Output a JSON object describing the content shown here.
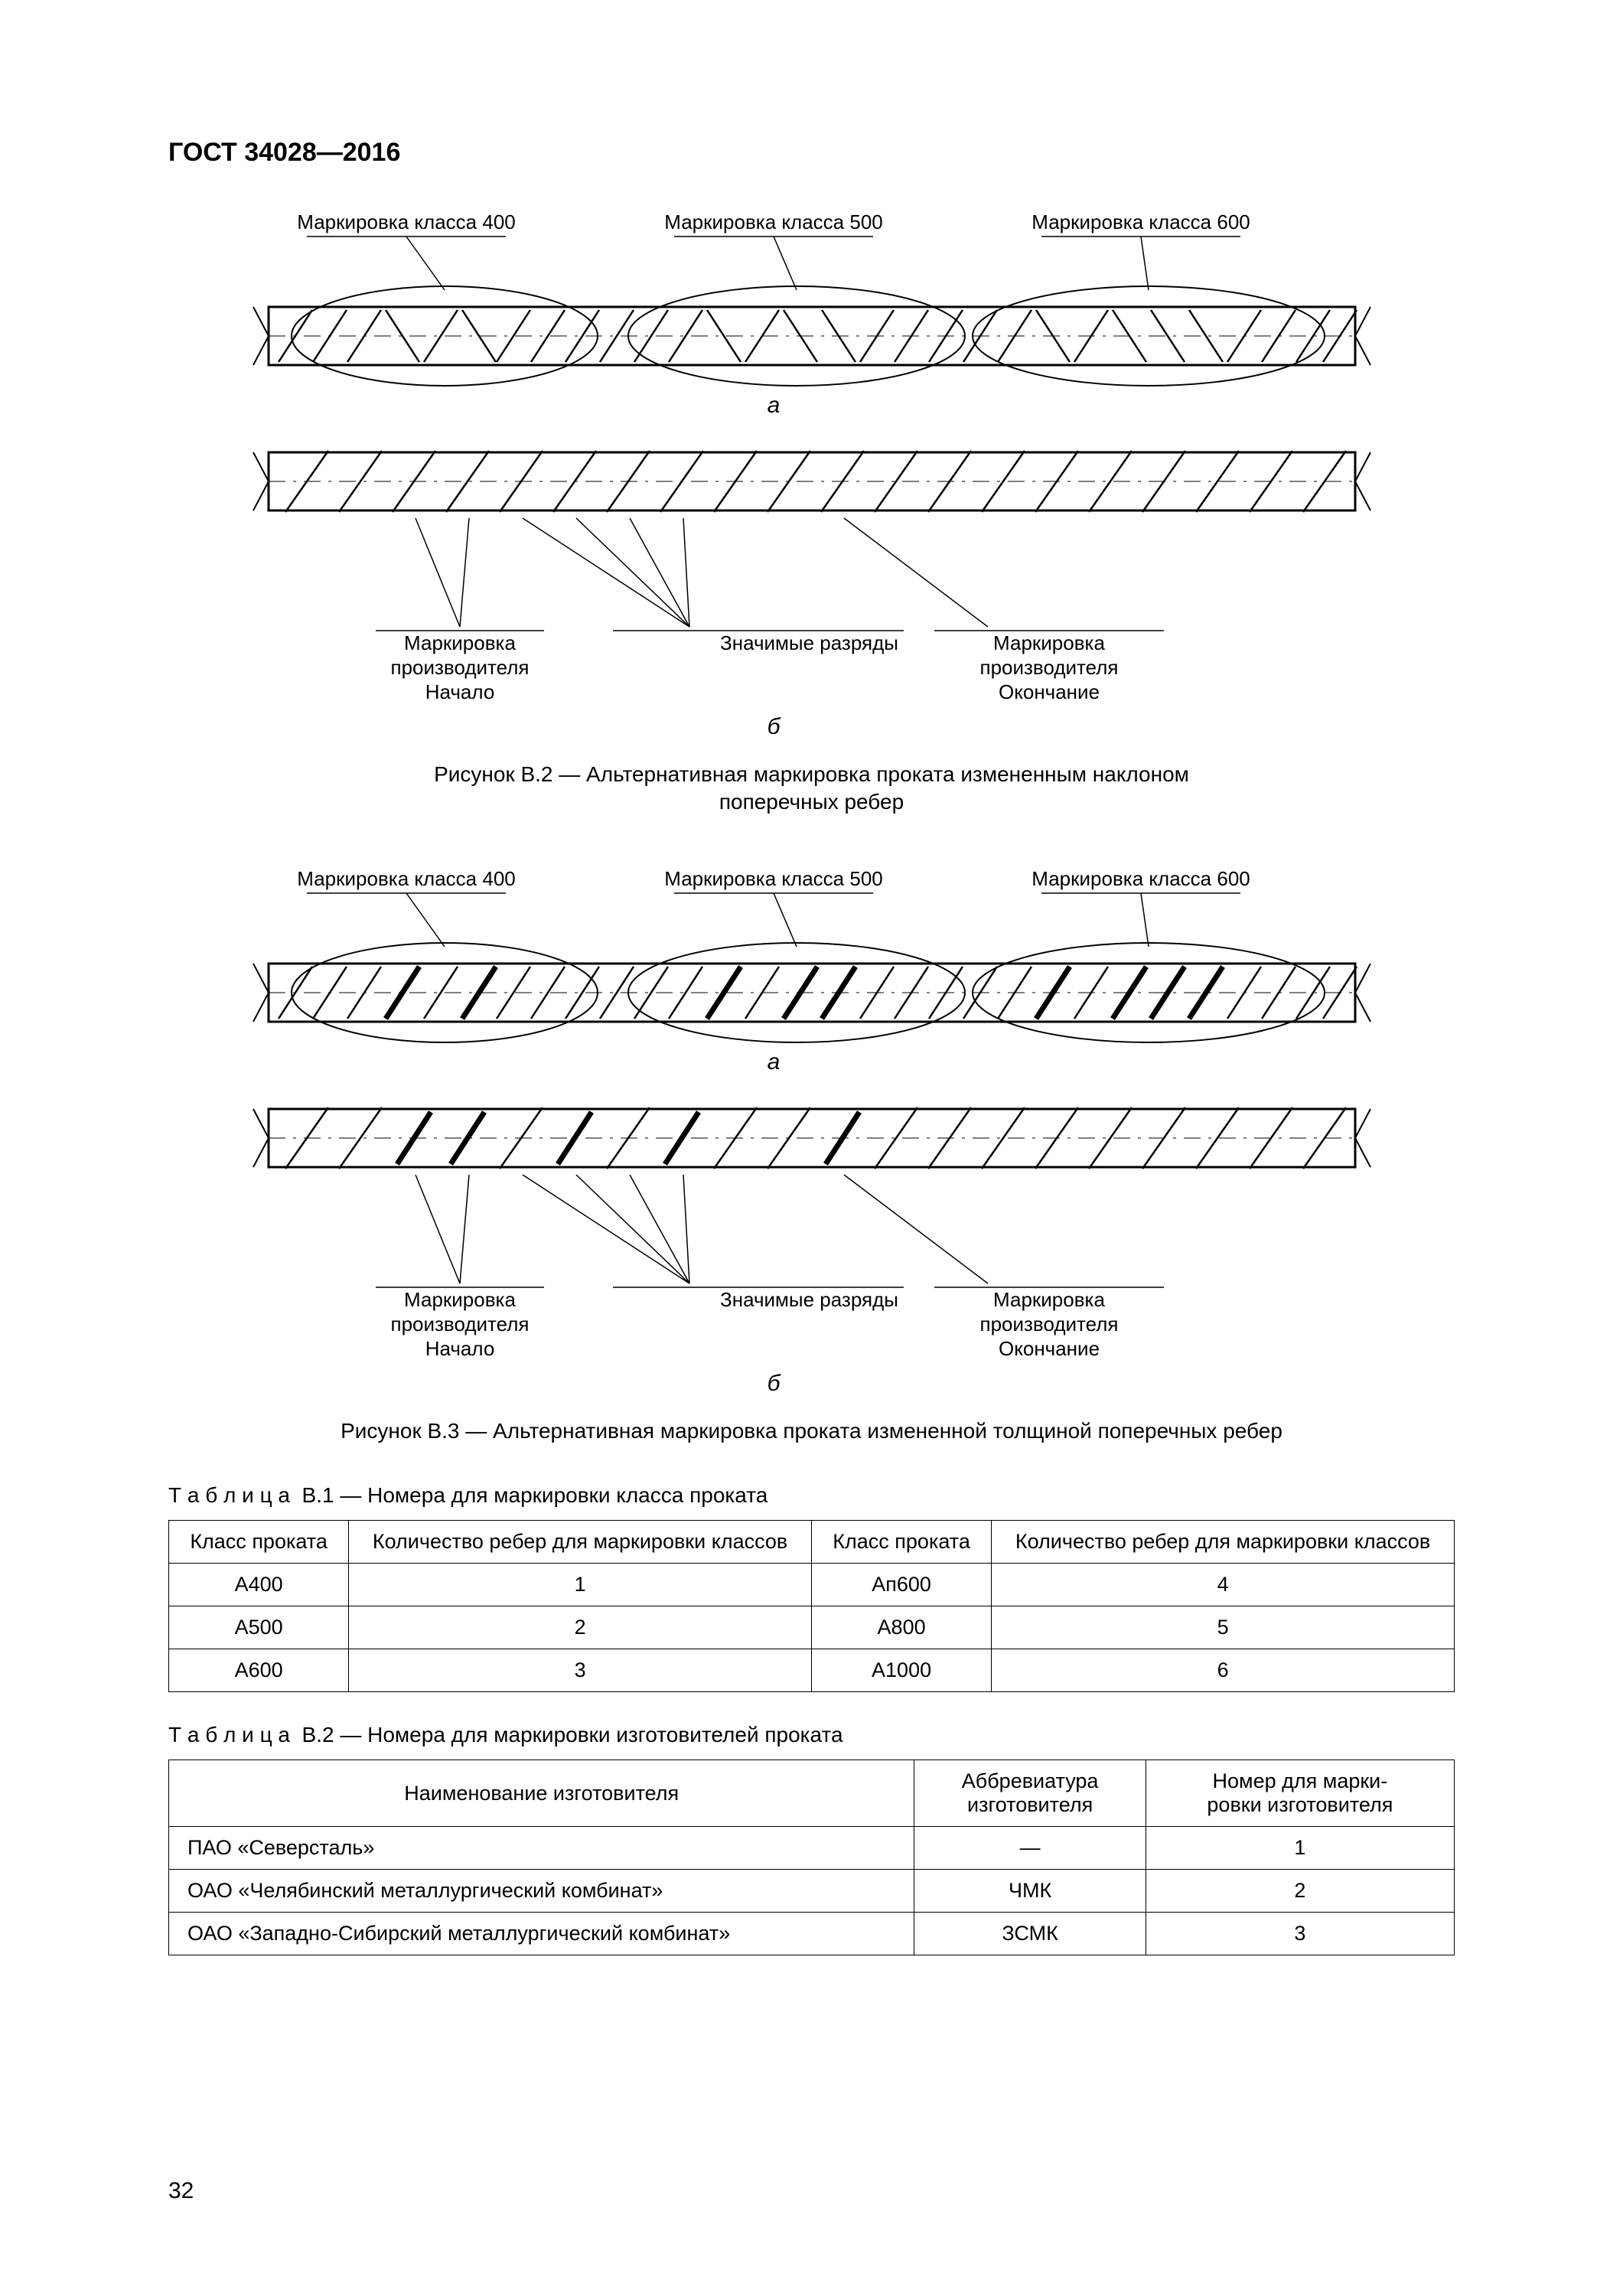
{
  "header": "ГОСТ 34028—2016",
  "page_number": "32",
  "diagram_labels": {
    "mark400": "Маркировка класса 400",
    "mark500": "Маркировка класса 500",
    "mark600": "Маркировка класса 600",
    "letter_a": "а",
    "letter_b": "б",
    "prod_start_l1": "Маркировка",
    "prod_start_l2": "производителя",
    "prod_start_l3": "Начало",
    "digits": "Значимые разряды",
    "prod_end_l1": "Маркировка",
    "prod_end_l2": "производителя",
    "prod_end_l3": "Окончание"
  },
  "fig2_caption_l1": "Рисунок В.2 — Альтернативная маркировка проката измененным наклоном",
  "fig2_caption_l2": "поперечных ребер",
  "fig3_caption": "Рисунок В.3 — Альтернативная маркировка проката измененной толщиной поперечных ребер",
  "table1": {
    "title_kw": "Т а б л и ц а",
    "title_rest": "В.1 — Номера для маркировки класса проката",
    "headers": [
      "Класс проката",
      "Количество ребер для маркировки классов",
      "Класс проката",
      "Количество ребер для маркировки классов"
    ],
    "rows": [
      [
        "А400",
        "1",
        "Ап600",
        "4"
      ],
      [
        "А500",
        "2",
        "А800",
        "5"
      ],
      [
        "А600",
        "3",
        "А1000",
        "6"
      ]
    ]
  },
  "table2": {
    "title_kw": "Т а б л и ц а",
    "title_rest": "В.2 — Номера для маркировки изготовителей проката",
    "headers": [
      "Наименование изготовителя",
      "Аббревиатура изготовителя",
      "Номер для марки-\nровки изготовителя"
    ],
    "rows": [
      [
        "ПАО «Северсталь»",
        "—",
        "1"
      ],
      [
        "ОАО «Челябинский металлургический комбинат»",
        "ЧМК",
        "2"
      ],
      [
        "ОАО «Западно-Сибирский металлургический комбинат»",
        "ЗСМК",
        "3"
      ]
    ]
  },
  "style": {
    "stroke": "#000000",
    "stroke_thin": 2,
    "stroke_thick": 7,
    "fill": "#ffffff",
    "font_label": 26,
    "font_letter": 30
  }
}
